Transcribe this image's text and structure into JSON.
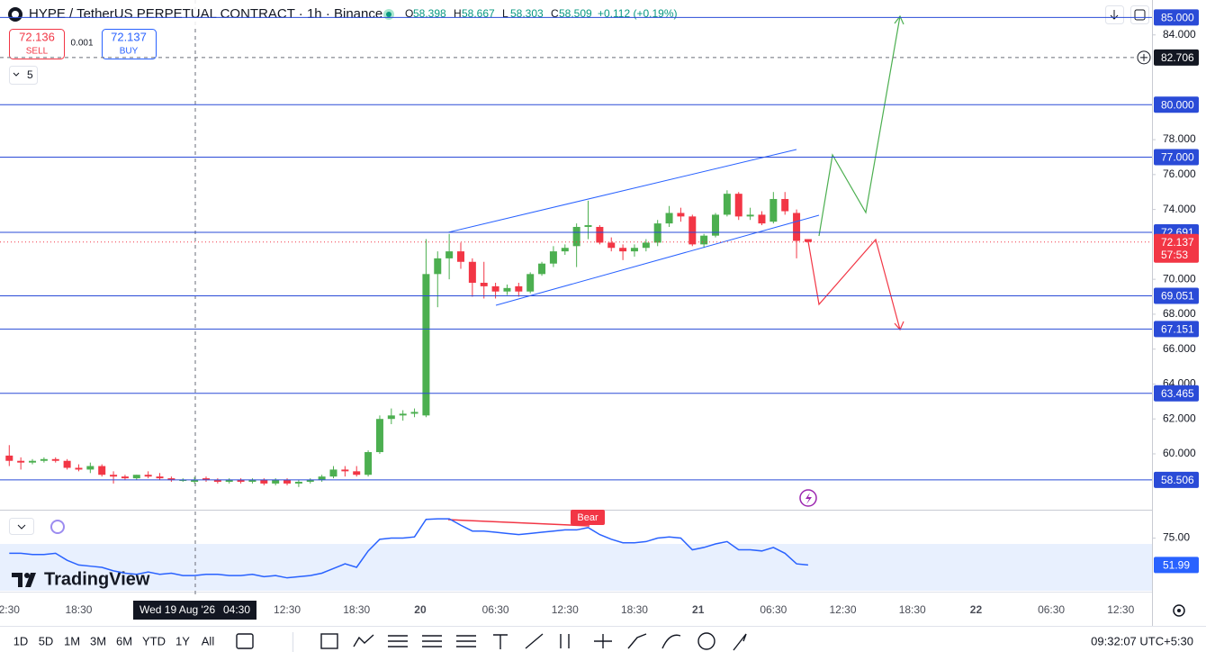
{
  "header": {
    "title": "HYPE / TetherUS PERPETUAL CONTRACT · 1h · Binance",
    "ohlc_labels": [
      "O",
      "H",
      "L",
      "C"
    ],
    "change": "+0.112 (+0.19%)"
  },
  "trade": {
    "sell_price": 72.136,
    "sell": "SELL",
    "spread": 0.001,
    "buy_price": 72.137,
    "buy": "BUY"
  },
  "indicator_count": 5,
  "logo": "TradingView",
  "crosshair": {
    "date": "Wed 19 Aug '26",
    "time": "04:30"
  },
  "toolbar": {
    "timeframes": [
      "1D",
      "5D",
      "1M",
      "3M",
      "6M",
      "YTD",
      "1Y",
      "All"
    ],
    "clock": "09:32:07 UTC+5:30"
  },
  "chart_data": [
    {
      "type": "candlestick",
      "up_color": "#4caf50",
      "down_color": "#f23645",
      "level_color": "#2a4bd7",
      "open": [
        59.9,
        59.6,
        59.5,
        59.6,
        59.7,
        59.6,
        59.2,
        59.1,
        59.3,
        58.8,
        58.7,
        58.6,
        58.8,
        58.7,
        58.6,
        58.5,
        58.398,
        58.6,
        58.5,
        58.4,
        58.5,
        58.4,
        58.5,
        58.3,
        58.5,
        58.3,
        58.4,
        58.5,
        58.7,
        59.1,
        59.0,
        58.8,
        60.1,
        62.0,
        62.2,
        62.3,
        62.2,
        70.3,
        71.2,
        71.6,
        71.0,
        69.8,
        69.6,
        69.3,
        69.6,
        69.3,
        70.3,
        70.9,
        71.6,
        71.9,
        73.0,
        73.0,
        72.1,
        71.8,
        71.6,
        71.8,
        72.1,
        73.2,
        73.8,
        73.6,
        72.0,
        72.5,
        73.7,
        74.9,
        73.6,
        73.7,
        73.3,
        74.6,
        73.8,
        72.3
      ],
      "high": [
        60.5,
        59.8,
        59.7,
        59.8,
        59.8,
        59.7,
        59.4,
        59.5,
        59.4,
        59.0,
        58.8,
        58.8,
        59.0,
        58.9,
        58.7,
        58.6,
        58.667,
        58.7,
        58.6,
        58.6,
        58.6,
        58.6,
        58.6,
        58.6,
        58.6,
        58.5,
        58.6,
        58.8,
        59.3,
        59.3,
        59.3,
        60.2,
        62.2,
        62.6,
        62.5,
        62.6,
        72.3,
        71.6,
        72.6,
        72.1,
        71.2,
        71.0,
        69.8,
        69.7,
        69.8,
        70.4,
        71.0,
        71.9,
        72.0,
        73.2,
        74.5,
        73.1,
        72.4,
        72.0,
        72.0,
        72.3,
        73.4,
        74.2,
        74.1,
        73.7,
        72.6,
        73.8,
        75.1,
        75.0,
        74.1,
        73.9,
        75.0,
        75.0,
        74.0,
        72.3
      ],
      "low": [
        59.3,
        59.1,
        59.4,
        59.5,
        59.5,
        59.1,
        59.0,
        58.9,
        58.7,
        58.3,
        58.5,
        58.5,
        58.6,
        58.5,
        58.4,
        58.4,
        58.303,
        58.4,
        58.3,
        58.3,
        58.3,
        58.3,
        58.2,
        58.2,
        58.2,
        58.1,
        58.3,
        58.4,
        58.6,
        58.7,
        58.7,
        58.7,
        60.0,
        61.7,
        61.9,
        62.1,
        62.1,
        68.4,
        70.0,
        70.6,
        69.0,
        68.9,
        68.9,
        69.1,
        69.0,
        69.2,
        70.2,
        70.7,
        71.4,
        70.7,
        72.3,
        72.0,
        71.6,
        71.1,
        71.3,
        71.6,
        71.9,
        73.0,
        73.3,
        71.9,
        71.8,
        72.4,
        73.6,
        73.4,
        73.4,
        73.1,
        73.2,
        73.7,
        71.2,
        72.1
      ],
      "close": [
        59.6,
        59.5,
        59.6,
        59.7,
        59.6,
        59.2,
        59.1,
        59.3,
        58.8,
        58.7,
        58.6,
        58.8,
        58.7,
        58.6,
        58.5,
        58.5,
        58.509,
        58.5,
        58.4,
        58.5,
        58.4,
        58.5,
        58.3,
        58.5,
        58.3,
        58.4,
        58.5,
        58.7,
        59.1,
        59.0,
        58.8,
        60.1,
        62.0,
        62.2,
        62.3,
        62.4,
        70.3,
        71.2,
        71.6,
        71.0,
        69.8,
        69.6,
        69.3,
        69.5,
        69.3,
        70.3,
        70.9,
        71.6,
        71.8,
        73.0,
        73.1,
        72.1,
        71.8,
        71.6,
        71.8,
        72.1,
        73.2,
        73.8,
        73.6,
        72.0,
        72.5,
        73.7,
        74.9,
        73.6,
        73.7,
        73.2,
        74.6,
        73.9,
        72.2,
        72.137
      ],
      "xlim": [
        -0.8,
        98.7
      ],
      "ylim": [
        56.8,
        86.0
      ],
      "xticks": [
        {
          "value": 0,
          "label": "2:30"
        },
        {
          "value": 6,
          "label": "18:30"
        },
        {
          "value": 24,
          "label": "12:30"
        },
        {
          "value": 30,
          "label": "18:30"
        },
        {
          "value": 35.5,
          "label": "20"
        },
        {
          "value": 42,
          "label": "06:30"
        },
        {
          "value": 48,
          "label": "12:30"
        },
        {
          "value": 54,
          "label": "18:30"
        },
        {
          "value": 59.5,
          "label": "21"
        },
        {
          "value": 66,
          "label": "06:30"
        },
        {
          "value": 72,
          "label": "12:30"
        },
        {
          "value": 78,
          "label": "18:30"
        },
        {
          "value": 83.5,
          "label": "22"
        },
        {
          "value": 90,
          "label": "06:30"
        },
        {
          "value": 96,
          "label": "12:30"
        }
      ],
      "yticks": [
        {
          "value": 84,
          "label": "84.000"
        },
        {
          "value": 78,
          "label": "78.000"
        },
        {
          "value": 76,
          "label": "76.000"
        },
        {
          "value": 74,
          "label": "74.000"
        },
        {
          "value": 70,
          "label": "70.000"
        },
        {
          "value": 68,
          "label": "68.000"
        },
        {
          "value": 66,
          "label": "66.000"
        },
        {
          "value": 64,
          "label": "64.000"
        },
        {
          "value": 62,
          "label": "62.000"
        },
        {
          "value": 60,
          "label": "60.000"
        }
      ],
      "levels": [
        {
          "value": 85,
          "label": "85.000"
        },
        {
          "value": 80,
          "label": "80.000"
        },
        {
          "value": 77,
          "label": "77.000"
        },
        {
          "value": 72.691,
          "label": "72.691"
        },
        {
          "value": 69.051,
          "label": "69.051"
        },
        {
          "value": 67.151,
          "label": "67.151"
        },
        {
          "value": 63.465,
          "label": "63.465"
        },
        {
          "value": 58.506,
          "label": "58.506"
        }
      ],
      "crosshair_price": 82.706,
      "last": 72.137,
      "countdown": "57:53"
    },
    {
      "type": "line",
      "color": "#2962ff",
      "band": [
        30,
        70
      ],
      "annotation": "Bear",
      "values": [
        62,
        62,
        61,
        61,
        62,
        56,
        52,
        51,
        50,
        47,
        45,
        44,
        46,
        44,
        45,
        43,
        43,
        44,
        44,
        43,
        43,
        44,
        42,
        43,
        41,
        42,
        43,
        45,
        49,
        53,
        50,
        64,
        74,
        75,
        75,
        76,
        91,
        91.5,
        91.5,
        86,
        81,
        81,
        80,
        79,
        78,
        79,
        80,
        81,
        82,
        82,
        84,
        78,
        74,
        71,
        71,
        72,
        75,
        76,
        75,
        65,
        67,
        70,
        72,
        65,
        65,
        64,
        67,
        62,
        53,
        51.99
      ],
      "ylim": [
        29.2,
        98.5
      ],
      "yticks": [
        {
          "value": 75,
          "label": "75.00"
        }
      ]
    }
  ]
}
